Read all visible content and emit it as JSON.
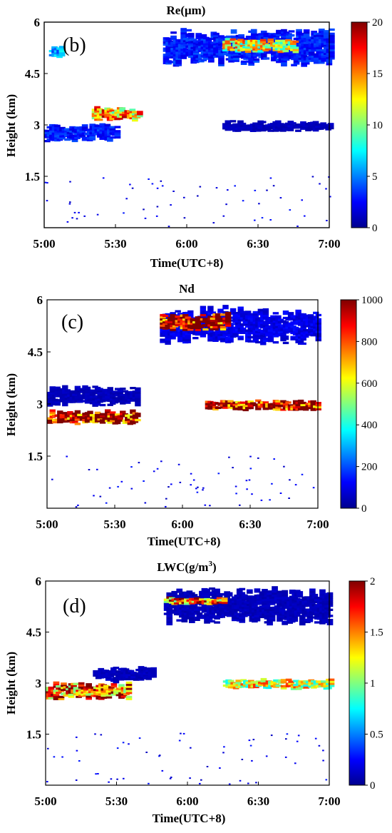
{
  "colormap": [
    "#00008f",
    "#0000ff",
    "#0080ff",
    "#00ffff",
    "#80ff80",
    "#ffff00",
    "#ff8000",
    "#ff0000",
    "#800000"
  ],
  "panels": [
    {
      "panel_label": "(b)",
      "title": "Re(μm)",
      "title_sup": "",
      "xlabel": "Time(UTC+8)",
      "ylabel": "Height (km)",
      "x_ticks": [
        "5:00",
        "5:30",
        "6:00",
        "6:30",
        "7:00"
      ],
      "y_ticks": [
        "1.5",
        "3",
        "4.5",
        "6"
      ],
      "colorbar_ticks": [
        "0",
        "5",
        "10",
        "15",
        "20"
      ]
    },
    {
      "panel_label": "(c)",
      "title": "Nd",
      "title_sup": "",
      "xlabel": "Time(UTC+8)",
      "ylabel": "Height (km)",
      "x_ticks": [
        "5:00",
        "5:30",
        "6:00",
        "6:30",
        "7:00"
      ],
      "y_ticks": [
        "1.5",
        "3",
        "4.5",
        "6"
      ],
      "colorbar_ticks": [
        "0",
        "200",
        "400",
        "600",
        "800",
        "1000"
      ]
    },
    {
      "panel_label": "(d)",
      "title": "LWC(g/m",
      "title_sup": "3",
      "title_suffix": ")",
      "xlabel": "Time(UTC+8)",
      "ylabel": "Height (km)",
      "x_ticks": [
        "5:00",
        "5:30",
        "6:00",
        "6:30",
        "7:00"
      ],
      "y_ticks": [
        "1.5",
        "3",
        "4.5",
        "6"
      ],
      "colorbar_ticks": [
        "0",
        "0.5",
        "1",
        "1.5",
        "2"
      ]
    }
  ],
  "chart_data": [
    {
      "type": "heatmap",
      "title": "Re(μm)",
      "xlabel": "Time(UTC+8)",
      "ylabel": "Height (km)",
      "xlim": [
        0,
        120
      ],
      "x_unit": "minutes after 5:00",
      "ylim": [
        0,
        6
      ],
      "clim": [
        0,
        20
      ],
      "regions": [
        {
          "name": "upper layer",
          "x": [
            50,
            120
          ],
          "y": [
            4.7,
            5.8
          ],
          "value": 3
        },
        {
          "name": "upper layer core",
          "x": [
            75,
            105
          ],
          "y": [
            5.1,
            5.5
          ],
          "value": 12
        },
        {
          "name": "small echo",
          "x": [
            2,
            7
          ],
          "y": [
            4.9,
            5.3
          ],
          "value": 6
        },
        {
          "name": "mid layer",
          "x": [
            0,
            30
          ],
          "y": [
            2.5,
            3.0
          ],
          "value": 3
        },
        {
          "name": "mid layer top",
          "x": [
            20,
            40
          ],
          "y": [
            3.1,
            3.5
          ],
          "value": 14
        },
        {
          "name": "mid layer right",
          "x": [
            75,
            120
          ],
          "y": [
            2.8,
            3.1
          ],
          "value": 1
        }
      ]
    },
    {
      "type": "heatmap",
      "title": "Nd",
      "xlabel": "Time(UTC+8)",
      "ylabel": "Height (km)",
      "xlim": [
        0,
        120
      ],
      "x_unit": "minutes after 5:00",
      "ylim": [
        0,
        6
      ],
      "clim": [
        0,
        1000
      ],
      "regions": [
        {
          "name": "upper layer",
          "x": [
            50,
            120
          ],
          "y": [
            4.7,
            5.8
          ],
          "value": 100
        },
        {
          "name": "upper layer core",
          "x": [
            50,
            80
          ],
          "y": [
            5.1,
            5.6
          ],
          "value": 1000
        },
        {
          "name": "mid layer",
          "x": [
            0,
            40
          ],
          "y": [
            2.4,
            2.8
          ],
          "value": 1000
        },
        {
          "name": "mid layer top",
          "x": [
            0,
            40
          ],
          "y": [
            2.9,
            3.5
          ],
          "value": 50
        },
        {
          "name": "mid layer right",
          "x": [
            70,
            120
          ],
          "y": [
            2.8,
            3.1
          ],
          "value": 1000
        }
      ]
    },
    {
      "type": "heatmap",
      "title": "LWC(g/m3)",
      "xlabel": "Time(UTC+8)",
      "ylabel": "Height (km)",
      "xlim": [
        0,
        120
      ],
      "x_unit": "minutes after 5:00",
      "ylim": [
        0,
        6
      ],
      "clim": [
        0,
        2
      ],
      "regions": [
        {
          "name": "upper layer",
          "x": [
            50,
            120
          ],
          "y": [
            4.7,
            5.8
          ],
          "value": 0.1
        },
        {
          "name": "upper layer edge",
          "x": [
            50,
            75
          ],
          "y": [
            5.3,
            5.5
          ],
          "value": 1.5
        },
        {
          "name": "mid layer",
          "x": [
            0,
            35
          ],
          "y": [
            2.5,
            3.0
          ],
          "value": 1.6
        },
        {
          "name": "mid layer top",
          "x": [
            20,
            45
          ],
          "y": [
            3.0,
            3.5
          ],
          "value": 0.1
        },
        {
          "name": "mid layer right",
          "x": [
            75,
            120
          ],
          "y": [
            2.8,
            3.1
          ],
          "value": 1.2
        }
      ]
    }
  ]
}
